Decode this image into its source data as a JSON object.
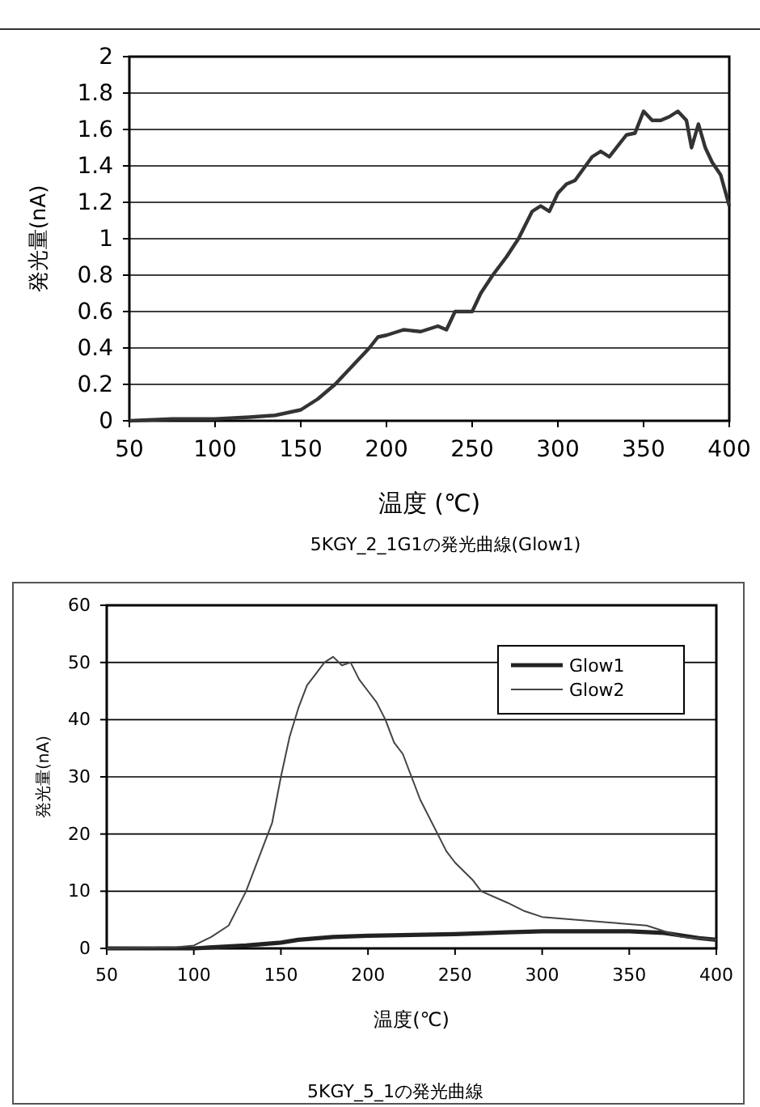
{
  "chart_data": [
    {
      "type": "line",
      "xlabel": "温度 (℃)",
      "ylabel": "発光量(nA)",
      "annotations": [
        "5KGY_2_1G1の発光曲線(Glow1)"
      ],
      "xlim": [
        50,
        400
      ],
      "xticks": [
        50,
        100,
        150,
        200,
        250,
        300,
        350,
        400
      ],
      "ylim": [
        0,
        2
      ],
      "yticks": [
        0,
        0.2,
        0.4,
        0.6,
        0.8,
        1,
        1.2,
        1.4,
        1.6,
        1.8,
        2
      ],
      "grid": "y",
      "legend": false,
      "x": [
        50,
        75,
        100,
        120,
        135,
        145,
        150,
        160,
        170,
        180,
        190,
        195,
        200,
        210,
        220,
        230,
        235,
        240,
        250,
        255,
        262,
        270,
        277,
        285,
        290,
        295,
        300,
        305,
        310,
        320,
        325,
        330,
        340,
        345,
        350,
        355,
        360,
        365,
        370,
        375,
        378,
        382,
        386,
        390,
        395,
        400
      ],
      "series": [
        {
          "color": "#333333",
          "values": [
            0,
            0.01,
            0.01,
            0.02,
            0.03,
            0.05,
            0.06,
            0.12,
            0.2,
            0.3,
            0.4,
            0.46,
            0.47,
            0.5,
            0.49,
            0.52,
            0.5,
            0.6,
            0.6,
            0.7,
            0.8,
            0.9,
            1.0,
            1.15,
            1.18,
            1.15,
            1.25,
            1.3,
            1.32,
            1.45,
            1.48,
            1.45,
            1.57,
            1.58,
            1.7,
            1.65,
            1.65,
            1.67,
            1.7,
            1.65,
            1.5,
            1.63,
            1.5,
            1.42,
            1.35,
            1.18
          ]
        }
      ]
    },
    {
      "type": "line",
      "xlabel": "温度(℃)",
      "ylabel": "発光量(nA)",
      "annotations": [
        "5KGY_5_1の発光曲線"
      ],
      "xlim": [
        50,
        400
      ],
      "xticks": [
        50,
        100,
        150,
        200,
        250,
        300,
        350,
        400
      ],
      "ylim": [
        0,
        60
      ],
      "yticks": [
        0,
        10,
        20,
        30,
        40,
        50,
        60
      ],
      "grid": "y",
      "legend": "top right",
      "series": [
        {
          "name": "Glow1",
          "color": "#222222",
          "x": [
            50,
            100,
            130,
            150,
            160,
            180,
            200,
            250,
            280,
            300,
            350,
            370,
            390,
            400
          ],
          "values": [
            0,
            0,
            0.5,
            1,
            1.5,
            2,
            2.2,
            2.5,
            2.8,
            3,
            3,
            2.7,
            1.8,
            1.5
          ]
        },
        {
          "name": "Glow2",
          "color": "#444444",
          "x": [
            50,
            90,
            100,
            110,
            120,
            130,
            140,
            145,
            150,
            155,
            160,
            165,
            170,
            175,
            180,
            185,
            190,
            195,
            200,
            205,
            210,
            215,
            220,
            225,
            230,
            240,
            245,
            250,
            260,
            265,
            280,
            290,
            300,
            320,
            340,
            360,
            370,
            380,
            400
          ],
          "values": [
            0,
            0.2,
            0.5,
            2,
            4,
            10,
            18,
            22,
            30,
            37,
            42,
            46,
            48,
            50,
            51,
            49.5,
            50,
            47,
            45,
            43,
            40,
            36,
            34,
            30,
            26,
            20,
            17,
            15,
            12,
            10,
            8,
            6.5,
            5.5,
            5,
            4.5,
            4,
            3,
            2,
            1.5
          ]
        }
      ]
    }
  ]
}
